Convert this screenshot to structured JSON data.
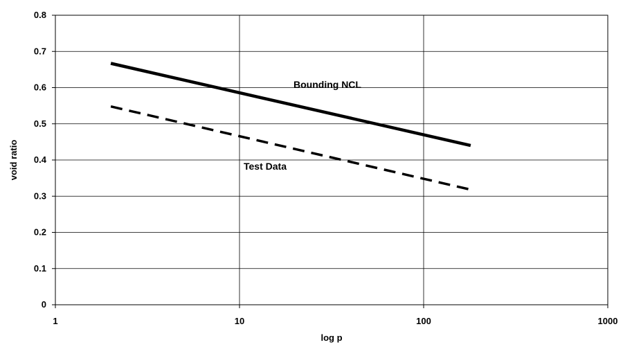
{
  "chart_data": {
    "type": "line",
    "title": "",
    "xlabel": "log p",
    "ylabel": "void ratio",
    "x_scale": "log",
    "xlim": [
      1,
      1000
    ],
    "ylim": [
      0,
      0.8
    ],
    "grid": true,
    "x_ticks": [
      "1",
      "10",
      "100",
      "1000"
    ],
    "y_ticks": [
      "0",
      "0.1",
      "0.2",
      "0.3",
      "0.4",
      "0.5",
      "0.6",
      "0.7",
      "0.8"
    ],
    "series": [
      {
        "name": "Bounding NCL",
        "x": [
          2,
          180
        ],
        "y": [
          0.667,
          0.44
        ],
        "style": "solid",
        "color": "#000000"
      },
      {
        "name": "Test Data",
        "x": [
          2,
          180
        ],
        "y": [
          0.548,
          0.318
        ],
        "style": "dashed",
        "color": "#000000"
      }
    ],
    "annotations": [
      "Bounding NCL",
      "Test Data"
    ]
  }
}
